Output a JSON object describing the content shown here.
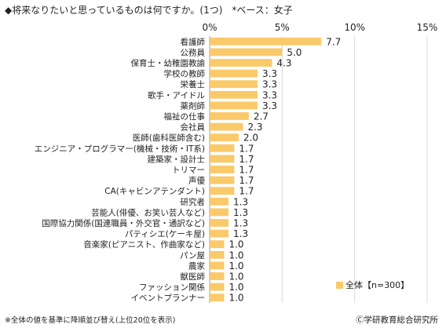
{
  "title": "◆将来なりたいと思っているものは何ですか。(1つ)　*ベース：女子",
  "note": "※全体の値を基準に降順並び替え(上位20位を表示)",
  "credit": "Ⓒ学研教育総合研究所",
  "chart_data": {
    "type": "bar",
    "orientation": "horizontal",
    "categories": [
      "看護師",
      "公務員",
      "保育士・幼稚園教諭",
      "学校の教師",
      "栄養士",
      "歌手・アイドル",
      "薬剤師",
      "福祉の仕事",
      "会社員",
      "医師(歯科医師含む)",
      "エンジニア・プログラマー(機械・技術・IT系)",
      "建築家・設計士",
      "トリマー",
      "声優",
      "CA(キャビンアテンダント)",
      "研究者",
      "芸能人(俳優、お笑い芸人など)",
      "国際協力関係(国連職員・外交官・通訳など)",
      "パティシエ(ケーキ屋)",
      "音楽家(ピアニスト、作曲家など)",
      "パン屋",
      "農家",
      "獣医師",
      "ファッション関係",
      "イベントプランナー"
    ],
    "series": [
      {
        "name": "全体【n=300】",
        "values": [
          7.7,
          5.0,
          4.3,
          3.3,
          3.3,
          3.3,
          3.3,
          2.7,
          2.3,
          2.0,
          1.7,
          1.7,
          1.7,
          1.7,
          1.7,
          1.3,
          1.3,
          1.3,
          1.3,
          1.0,
          1.0,
          1.0,
          1.0,
          1.0,
          1.0
        ]
      }
    ],
    "value_labels": [
      "7.7",
      "5.0",
      "4.3",
      "3.3",
      "3.3",
      "3.3",
      "3.3",
      "2.7",
      "2.3",
      "2.0",
      "1.7",
      "1.7",
      "1.7",
      "1.7",
      "1.7",
      "1.3",
      "1.3",
      "1.3",
      "1.3",
      "1.0",
      "1.0",
      "1.0",
      "1.0",
      "1.0",
      "1.0"
    ],
    "xlim": [
      0,
      15
    ],
    "xticks": [
      "0%",
      "5%",
      "10%",
      "15%"
    ],
    "grid": true,
    "legend_position": "bottom-right",
    "colors": {
      "bar": "#F9C96A",
      "grid": "#d8d8d8"
    }
  }
}
